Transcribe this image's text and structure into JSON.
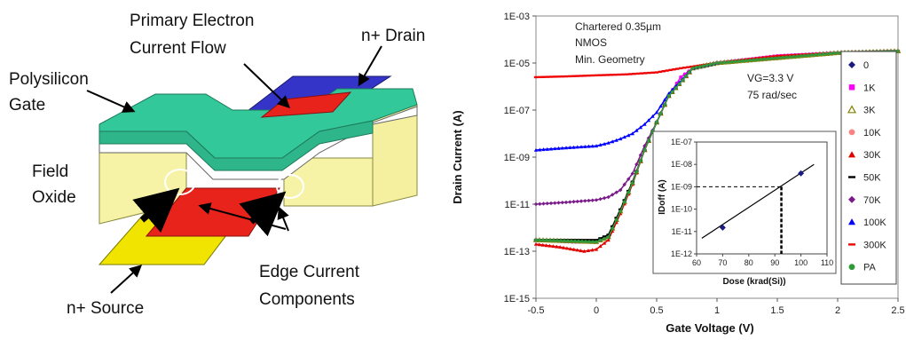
{
  "diagram": {
    "labels": {
      "primary_flow_line1": "Primary Electron",
      "primary_flow_line2": "Current Flow",
      "drain": "n+ Drain",
      "gate_line1": "Polysilicon",
      "gate_line2": "Gate",
      "oxide_line1": "Field",
      "oxide_line2": "Oxide",
      "edge_line1": "Edge Current",
      "edge_line2": "Components",
      "source": "n+ Source"
    },
    "colors": {
      "gate": "#2fb58a",
      "gate_top": "#33c89a",
      "oxide": "#f7f3a6",
      "drain": "#3434c8",
      "source": "#f0e400",
      "channel": "#e8231c"
    }
  },
  "chart_data": [
    {
      "type": "scatter",
      "xlabel": "Gate Voltage (V)",
      "ylabel": "Drain Current (A)",
      "xlim": [
        -0.5,
        2.5
      ],
      "ylim": [
        1e-15,
        0.001
      ],
      "yscale": "log",
      "x_ticks": [
        "-0.5",
        "0",
        "0.5",
        "1",
        "1.5",
        "2",
        "2.5"
      ],
      "y_ticks": [
        "1E-15",
        "1E-13",
        "1E-11",
        "1E-09",
        "1E-07",
        "1E-05",
        "1E-03"
      ],
      "annotations": [
        "Chartered 0.35µm",
        "NMOS",
        "Min. Geometry",
        "VG=3.3 V",
        "75 rad/sec"
      ],
      "legend_position": "right",
      "series": [
        {
          "name": "0",
          "color": "#1a1a80",
          "marker": "diamond",
          "points": [
            [
              -0.5,
              3e-13
            ],
            [
              -0.2,
              2.5e-13
            ],
            [
              0,
              2.5e-13
            ],
            [
              0.1,
              4e-13
            ],
            [
              0.2,
              5e-12
            ],
            [
              0.3,
              8e-11
            ],
            [
              0.4,
              2e-09
            ],
            [
              0.5,
              3e-08
            ],
            [
              0.6,
              4e-07
            ],
            [
              0.7,
              2.5e-06
            ],
            [
              0.8,
              6e-06
            ],
            [
              1.0,
              1e-05
            ],
            [
              1.5,
              2e-05
            ],
            [
              2.0,
              2.7e-05
            ],
            [
              2.5,
              3.2e-05
            ]
          ]
        },
        {
          "name": "1K",
          "color": "#ff00ff",
          "marker": "square",
          "points": [
            [
              -0.5,
              3e-13
            ],
            [
              -0.2,
              2.5e-13
            ],
            [
              0,
              2.5e-13
            ],
            [
              0.1,
              4e-13
            ],
            [
              0.2,
              5e-12
            ],
            [
              0.3,
              8e-11
            ],
            [
              0.4,
              2e-09
            ],
            [
              0.5,
              3e-08
            ],
            [
              0.6,
              4e-07
            ],
            [
              0.7,
              2.5e-06
            ],
            [
              0.8,
              6e-06
            ],
            [
              1.0,
              1e-05
            ],
            [
              1.5,
              2e-05
            ],
            [
              2.0,
              2.7e-05
            ],
            [
              2.5,
              3.2e-05
            ]
          ]
        },
        {
          "name": "3K",
          "color": "#808000",
          "marker": "triangle-open",
          "points": [
            [
              -0.5,
              3e-13
            ],
            [
              0,
              2.5e-13
            ],
            [
              0.1,
              4e-13
            ],
            [
              0.2,
              5e-12
            ],
            [
              0.3,
              8e-11
            ],
            [
              0.4,
              2e-09
            ],
            [
              0.5,
              3e-08
            ],
            [
              0.6,
              4e-07
            ],
            [
              0.8,
              6e-06
            ],
            [
              1.0,
              1e-05
            ],
            [
              2.0,
              2.7e-05
            ],
            [
              2.5,
              3.2e-05
            ]
          ]
        },
        {
          "name": "10K",
          "color": "#ff8080",
          "marker": "circle",
          "points": [
            [
              -0.5,
              3e-13
            ],
            [
              0,
              2.5e-13
            ],
            [
              0.1,
              4e-13
            ],
            [
              0.2,
              5e-12
            ],
            [
              0.3,
              8e-11
            ],
            [
              0.4,
              2e-09
            ],
            [
              0.5,
              3e-08
            ],
            [
              0.6,
              4e-07
            ],
            [
              0.8,
              6e-06
            ],
            [
              1.0,
              1e-05
            ],
            [
              2.0,
              2.7e-05
            ],
            [
              2.5,
              3.2e-05
            ]
          ]
        },
        {
          "name": "30K",
          "color": "#e00000",
          "marker": "triangle",
          "points": [
            [
              -0.5,
              2e-13
            ],
            [
              -0.3,
              1.5e-13
            ],
            [
              -0.1,
              1e-13
            ],
            [
              0,
              1.2e-13
            ],
            [
              0.1,
              3e-13
            ],
            [
              0.2,
              4e-12
            ],
            [
              0.3,
              7e-11
            ],
            [
              0.4,
              2e-09
            ],
            [
              0.5,
              3e-08
            ],
            [
              0.6,
              4e-07
            ],
            [
              0.8,
              6e-06
            ],
            [
              1.0,
              1e-05
            ]
          ]
        },
        {
          "name": "50K",
          "color": "#000000",
          "marker": "dash",
          "points": [
            [
              -0.5,
              3e-13
            ],
            [
              0,
              3e-13
            ],
            [
              0.1,
              5e-13
            ],
            [
              0.2,
              6e-12
            ],
            [
              0.3,
              9e-11
            ],
            [
              0.4,
              2e-09
            ],
            [
              0.5,
              3e-08
            ],
            [
              0.6,
              4e-07
            ],
            [
              0.8,
              6e-06
            ],
            [
              1.0,
              1e-05
            ]
          ]
        },
        {
          "name": "70K",
          "color": "#7a1a8a",
          "marker": "diamond",
          "points": [
            [
              -0.5,
              1e-11
            ],
            [
              -0.25,
              1.2e-11
            ],
            [
              0,
              1.5e-11
            ],
            [
              0.1,
              2e-11
            ],
            [
              0.2,
              4e-11
            ],
            [
              0.3,
              2e-10
            ],
            [
              0.4,
              3e-09
            ],
            [
              0.5,
              3e-08
            ],
            [
              0.6,
              4e-07
            ],
            [
              0.8,
              6e-06
            ],
            [
              1.0,
              1e-05
            ]
          ]
        },
        {
          "name": "100K",
          "color": "#0000ff",
          "marker": "triangle",
          "points": [
            [
              -0.5,
              2e-09
            ],
            [
              -0.25,
              2.5e-09
            ],
            [
              0,
              3e-09
            ],
            [
              0.1,
              4e-09
            ],
            [
              0.2,
              6e-09
            ],
            [
              0.3,
              1e-08
            ],
            [
              0.4,
              2.5e-08
            ],
            [
              0.5,
              8e-08
            ],
            [
              0.6,
              5e-07
            ],
            [
              0.8,
              6e-06
            ],
            [
              1.0,
              1e-05
            ]
          ]
        },
        {
          "name": "300K",
          "color": "#ee0000",
          "marker": "dash",
          "points": [
            [
              -0.5,
              2.5e-06
            ],
            [
              -0.25,
              2.7e-06
            ],
            [
              0,
              3e-06
            ],
            [
              0.25,
              3.3e-06
            ],
            [
              0.5,
              4e-06
            ],
            [
              0.7,
              6e-06
            ],
            [
              1.0,
              1e-05
            ],
            [
              1.5,
              2e-05
            ],
            [
              2.0,
              2.7e-05
            ],
            [
              2.5,
              3.2e-05
            ]
          ]
        },
        {
          "name": "PA",
          "color": "#2e9a3a",
          "marker": "circle",
          "points": [
            [
              -0.5,
              3e-13
            ],
            [
              0,
              2.5e-13
            ],
            [
              0.1,
              4e-13
            ],
            [
              0.2,
              5e-12
            ],
            [
              0.3,
              8e-11
            ],
            [
              0.4,
              2e-09
            ],
            [
              0.5,
              3e-08
            ],
            [
              0.6,
              4e-07
            ],
            [
              0.8,
              6e-06
            ],
            [
              1.0,
              1e-05
            ],
            [
              2.0,
              2.7e-05
            ],
            [
              2.5,
              3.2e-05
            ]
          ]
        }
      ]
    },
    {
      "type": "scatter",
      "xlabel": "Dose (krad(Si))",
      "ylabel": "IDoff (A)",
      "xlim": [
        60,
        110
      ],
      "ylim": [
        1e-12,
        1e-07
      ],
      "yscale": "log",
      "x_ticks": [
        "60",
        "70",
        "80",
        "90",
        "100",
        "110"
      ],
      "y_ticks": [
        "1E-12",
        "1E-11",
        "1E-10",
        "1E-09",
        "1E-08",
        "1E-07"
      ],
      "points": [
        [
          70,
          1.5e-11
        ],
        [
          100,
          4e-09
        ]
      ],
      "fit_line": [
        [
          62,
          5e-12
        ],
        [
          105,
          1e-08
        ]
      ],
      "reference": {
        "x": 92.5,
        "y": 1e-09
      }
    }
  ]
}
